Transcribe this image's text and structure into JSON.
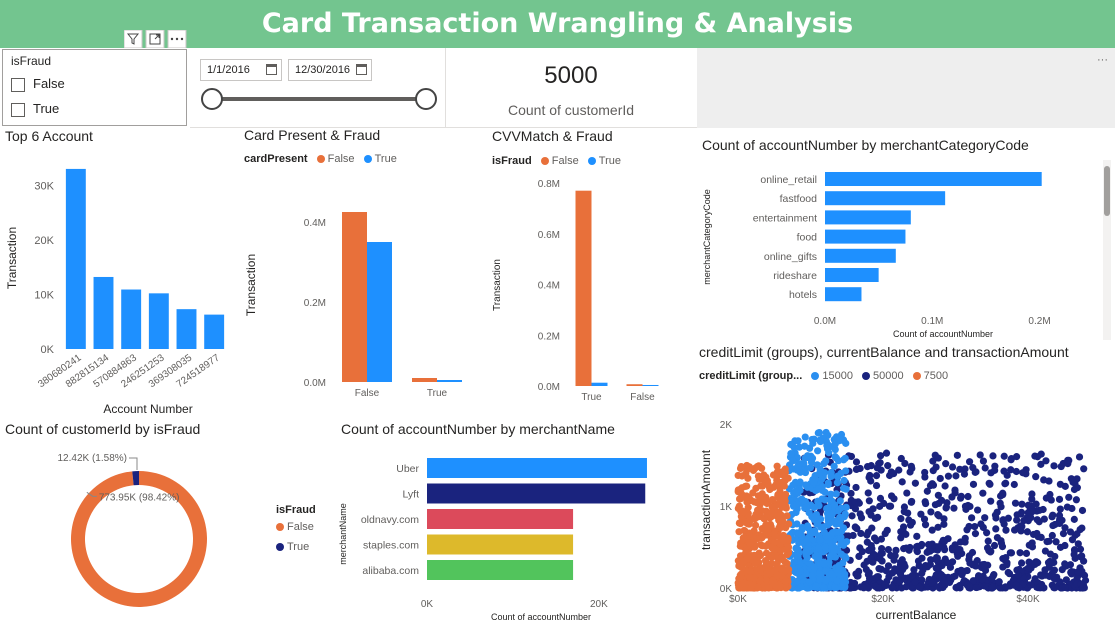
{
  "header": {
    "title": "Card Transaction Wrangling & Analysis"
  },
  "slicer": {
    "title": "isFraud",
    "options": [
      "False",
      "True"
    ],
    "header_icons": [
      "filter-icon",
      "focus-mode-icon",
      "more-options-icon"
    ]
  },
  "date_range": {
    "start": "1/1/2016",
    "end": "12/30/2016"
  },
  "kpi": {
    "value": "5000",
    "label": "Count of customerId"
  },
  "colors": {
    "banner": "#73c58f",
    "blue": "#1e90ff",
    "orange": "#e8703a",
    "navy": "#1a237e",
    "red": "#dc4a5b",
    "yellow": "#ddb92b",
    "green": "#52c45c",
    "scatter_blue": "#2a8ff0"
  },
  "top_accounts": {
    "title": "Top 6 Account",
    "chart_data": {
      "type": "bar",
      "categories": [
        "380680241",
        "882815134",
        "570884863",
        "246251253",
        "369308035",
        "724518977"
      ],
      "values": [
        33000,
        13200,
        10900,
        10200,
        7300,
        6300
      ],
      "xlabel": "Account Number",
      "ylabel": "Transaction",
      "ylim": [
        0,
        35000
      ],
      "ticks": [
        0,
        10000,
        20000,
        30000
      ],
      "tick_labels": [
        "0K",
        "10K",
        "20K",
        "30K"
      ]
    }
  },
  "card_present": {
    "title": "Card Present & Fraud",
    "legend_title": "cardPresent",
    "chart_data": {
      "type": "bar",
      "categories": [
        "False",
        "True"
      ],
      "series": [
        {
          "name": "False",
          "values": [
            425000,
            10000
          ]
        },
        {
          "name": "True",
          "values": [
            350000,
            5000
          ]
        }
      ],
      "ylabel": "Transaction",
      "ylim": [
        0,
        480000
      ],
      "ticks": [
        0,
        200000,
        400000
      ],
      "tick_labels": [
        "0.0M",
        "0.2M",
        "0.4M"
      ]
    }
  },
  "cvv_match": {
    "title": "CVVMatch & Fraud",
    "legend_title": "isFraud",
    "chart_data": {
      "type": "bar",
      "categories": [
        "True",
        "False"
      ],
      "series": [
        {
          "name": "False",
          "values": [
            770000,
            7000
          ]
        },
        {
          "name": "True",
          "values": [
            13000,
            4000
          ]
        }
      ],
      "ylabel": "Transaction",
      "ylim": [
        0,
        820000
      ],
      "ticks": [
        0,
        200000,
        400000,
        600000,
        800000
      ],
      "tick_labels": [
        "0.0M",
        "0.2M",
        "0.4M",
        "0.6M",
        "0.8M"
      ]
    }
  },
  "merchant_category": {
    "title": "Count of accountNumber by merchantCategoryCode",
    "chart_data": {
      "type": "bar",
      "orientation": "horizontal",
      "categories": [
        "online_retail",
        "fastfood",
        "entertainment",
        "food",
        "online_gifts",
        "rideshare",
        "hotels"
      ],
      "values": [
        202000,
        112000,
        80000,
        75000,
        66000,
        50000,
        34000
      ],
      "xlabel": "Count of accountNumber",
      "ylabel": "merchantCategoryCode",
      "xlim": [
        0,
        220000
      ],
      "ticks": [
        0,
        100000,
        200000
      ],
      "tick_labels": [
        "0.0M",
        "0.1M",
        "0.2M"
      ]
    }
  },
  "fraud_donut": {
    "title": "Count of customerId by isFraud",
    "chart_data": {
      "type": "pie",
      "labels": [
        "False",
        "True"
      ],
      "values": [
        773950,
        12420
      ],
      "data_labels": [
        "773.95K (98.42%)",
        "12.42K (1.58%)"
      ]
    }
  },
  "merchant_name": {
    "title": "Count of accountNumber by merchantName",
    "legend_title": "isFraud",
    "legend_items": [
      "False",
      "True"
    ],
    "chart_data": {
      "type": "bar",
      "orientation": "horizontal",
      "categories": [
        "Uber",
        "Lyft",
        "oldnavy.com",
        "staples.com",
        "alibaba.com"
      ],
      "values": [
        25600,
        25400,
        17000,
        17000,
        17000
      ],
      "xlabel": "Count of accountNumber",
      "ylabel": "merchantName",
      "xlim": [
        0,
        27000
      ],
      "ticks": [
        0,
        20000
      ],
      "tick_labels": [
        "0K",
        "20K"
      ]
    }
  },
  "scatter": {
    "title": "creditLimit (groups), currentBalance and transactionAmount",
    "legend_title": "creditLimit (group...",
    "legend_items": [
      "15000",
      "50000",
      "7500"
    ],
    "chart_data": {
      "type": "scatter",
      "series": [
        {
          "name": "7500",
          "x_range": [
            0,
            7000
          ],
          "y_range": [
            0,
            1500
          ]
        },
        {
          "name": "15000",
          "x_range": [
            7000,
            15000
          ],
          "y_range": [
            0,
            1900
          ]
        },
        {
          "name": "50000",
          "x_range": [
            9000,
            48000
          ],
          "y_range": [
            0,
            1650
          ]
        }
      ],
      "xlabel": "currentBalance",
      "ylabel": "transactionAmount",
      "xlim": [
        0,
        48000
      ],
      "ylim": [
        0,
        2050
      ],
      "xticks": [
        0,
        20000,
        40000
      ],
      "xtick_labels": [
        "$0K",
        "$20K",
        "$40K"
      ],
      "yticks": [
        0,
        1000,
        2000
      ],
      "ytick_labels": [
        "0K",
        "1K",
        "2K"
      ]
    }
  }
}
